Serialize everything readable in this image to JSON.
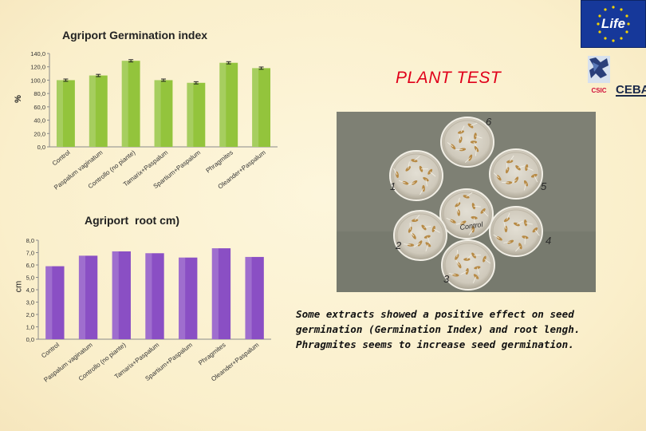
{
  "slide": {
    "heading": "PLANT TEST",
    "caption": "Some extracts showed a positive effect on seed germination (Germination Index) and root lengh. Phragmites seems to increase seed germination."
  },
  "logos": {
    "life_text": "Life",
    "csic_text": "CSIC",
    "cebas_text": "CEBAS"
  },
  "photo": {
    "dish_labels": [
      "6",
      "1",
      "5",
      "2",
      "4",
      "3",
      "Control"
    ]
  },
  "colors": {
    "germination_bar": "#93c43c",
    "root_bar": "#8a4fc4",
    "heading": "#e0001a",
    "background": "#fbf0cf"
  },
  "chart_data": [
    {
      "type": "bar",
      "title": "Agriport Germination index",
      "ylabel": "%",
      "xlabel": "",
      "categories": [
        "Control",
        "Paspalum vaginatum",
        "Controllo (no piante)",
        "Tamarix+Paspalum",
        "Spartium+Paspalum",
        "Phragmites",
        "Oleander+Paspalum"
      ],
      "values": [
        100.0,
        107.0,
        129.0,
        100.0,
        96.0,
        126.0,
        118.0
      ],
      "error_bars": true,
      "ylim": [
        0,
        140
      ],
      "yticks": [
        "0,0",
        "20,0",
        "40,0",
        "60,0",
        "80,0",
        "100,0",
        "120,0",
        "140,0"
      ],
      "ytick_values": [
        0,
        20,
        40,
        60,
        80,
        100,
        120,
        140
      ],
      "grid": false
    },
    {
      "type": "bar",
      "title": "Agriport  root cm)",
      "ylabel": "cm",
      "xlabel": "",
      "categories": [
        "Control",
        "Paspalum vaginatum",
        "Controllo (no piante)",
        "Tamarix+Paspalum",
        "Spartium+Paspalum",
        "Phragmites",
        "Oleander+Paspalum"
      ],
      "values": [
        5.9,
        6.75,
        7.1,
        6.95,
        6.6,
        7.35,
        6.65
      ],
      "ylim": [
        0,
        8
      ],
      "yticks": [
        "0,0",
        "1,0",
        "2,0",
        "3,0",
        "4,0",
        "5,0",
        "6,0",
        "7,0",
        "8,0"
      ],
      "ytick_values": [
        0,
        1,
        2,
        3,
        4,
        5,
        6,
        7,
        8
      ],
      "grid": false
    }
  ]
}
